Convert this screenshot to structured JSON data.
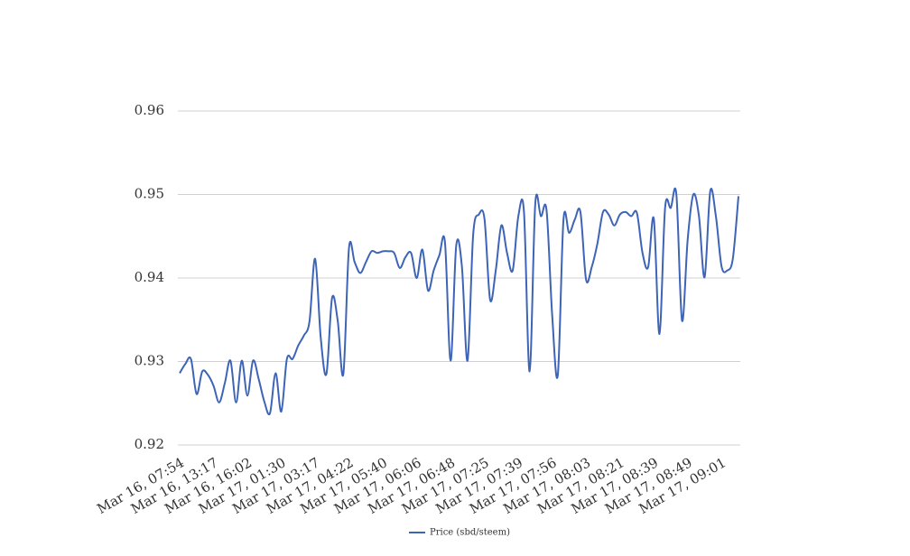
{
  "chart_data": {
    "type": "line",
    "categories": [
      "Mar 16, 07:54",
      null,
      null,
      null,
      null,
      null,
      "Mar 16, 13:17",
      null,
      null,
      null,
      null,
      null,
      "Mar 16, 16:02",
      null,
      null,
      null,
      null,
      null,
      "Mar 17, 01:30",
      null,
      null,
      null,
      null,
      null,
      "Mar 17, 03:17",
      null,
      null,
      null,
      null,
      null,
      "Mar 17, 04:22",
      null,
      null,
      null,
      null,
      null,
      "Mar 17, 05:40",
      null,
      null,
      null,
      null,
      null,
      "Mar 17, 06:06",
      null,
      null,
      null,
      null,
      null,
      "Mar 17, 06:48",
      null,
      null,
      null,
      null,
      null,
      "Mar 17, 07:25",
      null,
      null,
      null,
      null,
      null,
      "Mar 17, 07:39",
      null,
      null,
      null,
      null,
      null,
      "Mar 17, 07:56",
      null,
      null,
      null,
      null,
      null,
      "Mar 17, 08:03",
      null,
      null,
      null,
      null,
      null,
      "Mar 17, 08:21",
      null,
      null,
      null,
      null,
      null,
      "Mar 17, 08:39",
      null,
      null,
      null,
      null,
      null,
      "Mar 17, 08:49",
      null,
      null,
      null,
      null,
      null,
      "Mar 17, 09:01",
      null,
      null,
      null
    ],
    "series": [
      {
        "name": "Price (sbd/steem)",
        "color": "#3d64b6",
        "values": [
          0.9286,
          0.9297,
          0.9303,
          0.9261,
          0.9288,
          0.9284,
          0.9271,
          0.9251,
          0.9274,
          0.9301,
          0.9251,
          0.9301,
          0.9259,
          0.9301,
          0.9279,
          0.9252,
          0.9238,
          0.9286,
          0.924,
          0.9303,
          0.9303,
          0.9319,
          0.9331,
          0.9348,
          0.9423,
          0.9328,
          0.9285,
          0.9376,
          0.9349,
          0.9285,
          0.9436,
          0.9419,
          0.9406,
          0.9419,
          0.9432,
          0.943,
          0.9432,
          0.9432,
          0.943,
          0.9412,
          0.9425,
          0.943,
          0.94,
          0.9434,
          0.9385,
          0.9409,
          0.9427,
          0.9443,
          0.9301,
          0.9439,
          0.9414,
          0.9301,
          0.9452,
          0.9476,
          0.9471,
          0.9374,
          0.9409,
          0.9463,
          0.943,
          0.9409,
          0.9474,
          0.9479,
          0.9288,
          0.9489,
          0.9474,
          0.9481,
          0.9355,
          0.9284,
          0.947,
          0.9454,
          0.947,
          0.9479,
          0.9398,
          0.9413,
          0.9441,
          0.9479,
          0.9476,
          0.9463,
          0.9476,
          0.9479,
          0.9474,
          0.9478,
          0.943,
          0.9413,
          0.9471,
          0.9333,
          0.9484,
          0.9484,
          0.95,
          0.9349,
          0.9446,
          0.95,
          0.9474,
          0.9401,
          0.9504,
          0.9474,
          0.9414,
          0.9409,
          0.9423,
          0.9498
        ]
      }
    ],
    "ylim": [
      0.92,
      0.96
    ],
    "yticks": [
      0.92,
      0.93,
      0.94,
      0.95,
      0.96
    ],
    "grid": true,
    "legend": "bottom"
  }
}
